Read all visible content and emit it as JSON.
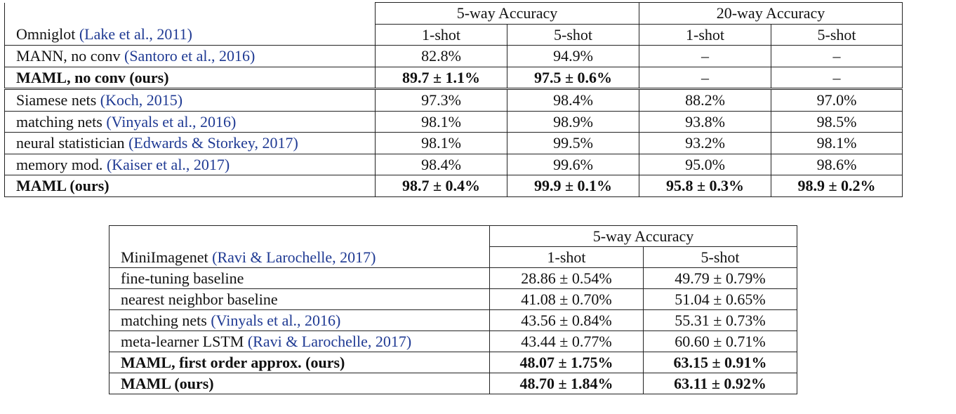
{
  "omniglot": {
    "dataset": "Omniglot",
    "dataset_cite": "(Lake et al., 2011)",
    "group1": "5-way Accuracy",
    "group2": "20-way Accuracy",
    "cols": [
      "1-shot",
      "5-shot",
      "1-shot",
      "5-shot"
    ],
    "rows": [
      {
        "name": "MANN, no conv",
        "cite": "(Santoro et al., 2016)",
        "bold": false,
        "vals": [
          "82.8%",
          "94.9%",
          "–",
          "–"
        ]
      },
      {
        "name": "MAML, no conv (ours)",
        "cite": "",
        "bold": true,
        "vals": [
          "89.7 ± 1.1%",
          "97.5 ± 0.6%",
          "–",
          "–"
        ]
      },
      {
        "name": "Siamese nets",
        "cite": "(Koch, 2015)",
        "bold": false,
        "vals": [
          "97.3%",
          "98.4%",
          "88.2%",
          "97.0%"
        ]
      },
      {
        "name": "matching nets",
        "cite": "(Vinyals et al., 2016)",
        "bold": false,
        "vals": [
          "98.1%",
          "98.9%",
          "93.8%",
          "98.5%"
        ]
      },
      {
        "name": "neural statistician",
        "cite": "(Edwards & Storkey, 2017)",
        "bold": false,
        "vals": [
          "98.1%",
          "99.5%",
          "93.2%",
          "98.1%"
        ]
      },
      {
        "name": "memory mod.",
        "cite": "(Kaiser et al., 2017)",
        "bold": false,
        "vals": [
          "98.4%",
          "99.6%",
          "95.0%",
          "98.6%"
        ]
      },
      {
        "name": "MAML (ours)",
        "cite": "",
        "bold": true,
        "vals": [
          "98.7 ± 0.4%",
          "99.9 ± 0.1%",
          "95.8 ± 0.3%",
          "98.9 ± 0.2%"
        ]
      }
    ]
  },
  "miniimagenet": {
    "dataset": "MiniImagenet",
    "dataset_cite": "(Ravi & Larochelle, 2017)",
    "group1": "5-way Accuracy",
    "cols": [
      "1-shot",
      "5-shot"
    ],
    "rows": [
      {
        "name": "fine-tuning baseline",
        "cite": "",
        "bold": false,
        "vals": [
          "28.86 ± 0.54%",
          "49.79 ± 0.79%"
        ]
      },
      {
        "name": "nearest neighbor baseline",
        "cite": "",
        "bold": false,
        "vals": [
          "41.08 ± 0.70%",
          "51.04 ± 0.65%"
        ]
      },
      {
        "name": "matching nets",
        "cite": "(Vinyals et al., 2016)",
        "bold": false,
        "vals": [
          "43.56 ± 0.84%",
          "55.31 ± 0.73%"
        ]
      },
      {
        "name": "meta-learner LSTM",
        "cite": "(Ravi & Larochelle, 2017)",
        "bold": false,
        "vals": [
          "43.44 ± 0.77%",
          "60.60 ± 0.71%"
        ]
      },
      {
        "name": "MAML, first order approx. (ours)",
        "cite": "",
        "bold": true,
        "vals": [
          "48.07 ± 1.75%",
          "63.15 ± 0.91%"
        ]
      },
      {
        "name": "MAML (ours)",
        "cite": "",
        "bold": true,
        "vals": [
          "48.70 ± 1.84%",
          "63.11 ± 0.92%"
        ]
      }
    ]
  }
}
